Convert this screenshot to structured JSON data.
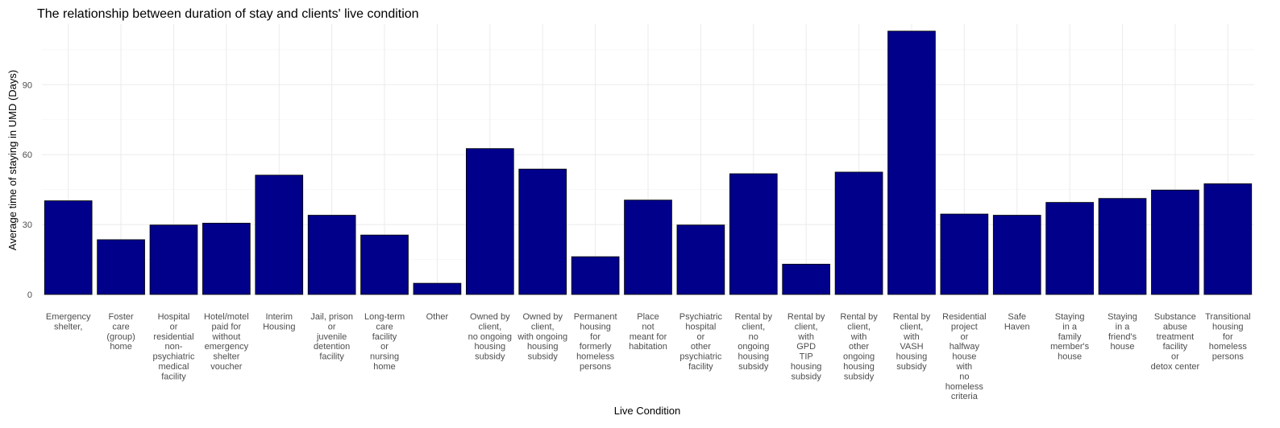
{
  "chart_data": {
    "type": "bar",
    "title": "The relationship between duration of stay and clients' live condition",
    "xlabel": "Live Condition",
    "ylabel": "Average time of staying in UMD (Days)",
    "ylim": [
      0,
      116
    ],
    "yticks": [
      0,
      30,
      60,
      90
    ],
    "grid": true,
    "bar_color": "#00008B",
    "categories": [
      "Emergency shelter,",
      "Foster care (group) home",
      "Hospital or residential non-psychiatric medical facility",
      "Hotel/motel paid for without emergency shelter voucher",
      "Interim Housing",
      "Jail, prison or juvenile detention facility",
      "Long-term care facility or nursing home",
      "Other",
      "Owned by client, no ongoing housing subsidy",
      "Owned by client, with ongoing housing subsidy",
      "Permanent housing for formerly homeless persons",
      "Place not meant for habitation",
      "Psychiatric hospital or other psychiatric facility",
      "Rental by client, no ongoing housing subsidy",
      "Rental by client, with GPD TIP housing subsidy",
      "Rental by client, with other ongoing housing subsidy",
      "Rental by client, with VASH housing subsidy",
      "Residential project or halfway house with no homeless criteria",
      "Safe Haven",
      "Staying in a family member's house",
      "Staying in a friend's house",
      "Substance abuse treatment facility or detox center",
      "Transitional housing for homeless persons"
    ],
    "tick_label_lines": [
      [
        "Emergency",
        "shelter,"
      ],
      [
        "Foster",
        "care",
        "(group)",
        "home"
      ],
      [
        "Hospital",
        "or",
        "residential",
        "non-",
        "psychiatric",
        "medical",
        "facility"
      ],
      [
        "Hotel/motel",
        "paid for",
        "without",
        "emergency",
        "shelter",
        "voucher"
      ],
      [
        "Interim",
        "Housing"
      ],
      [
        "Jail, prison",
        "or",
        "juvenile",
        "detention",
        "facility"
      ],
      [
        "Long-term",
        "care",
        "facility",
        "or",
        "nursing",
        "home"
      ],
      [
        "Other"
      ],
      [
        "Owned by",
        "client,",
        "no ongoing",
        "housing",
        "subsidy"
      ],
      [
        "Owned by",
        "client,",
        "with ongoing",
        "housing",
        "subsidy"
      ],
      [
        "Permanent",
        "housing",
        "for",
        "formerly",
        "homeless",
        "persons"
      ],
      [
        "Place",
        "not",
        "meant for",
        "habitation"
      ],
      [
        "Psychiatric",
        "hospital",
        "or",
        "other",
        "psychiatric",
        "facility"
      ],
      [
        "Rental by",
        "client,",
        "no",
        "ongoing",
        "housing",
        "subsidy"
      ],
      [
        "Rental by",
        "client,",
        "with",
        "GPD",
        "TIP",
        "housing",
        "subsidy"
      ],
      [
        "Rental by",
        "client,",
        "with",
        "other",
        "ongoing",
        "housing",
        "subsidy"
      ],
      [
        "Rental by",
        "client,",
        "with",
        "VASH",
        "housing",
        "subsidy"
      ],
      [
        "Residential",
        "project",
        "or",
        "halfway",
        "house",
        "with",
        "no",
        "homeless",
        "criteria"
      ],
      [
        "Safe",
        "Haven"
      ],
      [
        "Staying",
        "in a",
        "family",
        "member's",
        "house"
      ],
      [
        "Staying",
        "in a",
        "friend's",
        "house"
      ],
      [
        "Substance",
        "abuse",
        "treatment",
        "facility",
        "or",
        "detox center"
      ],
      [
        "Transitional",
        "housing",
        "for",
        "homeless",
        "persons"
      ]
    ],
    "values": [
      40.2,
      23.5,
      29.8,
      30.6,
      51.2,
      34.0,
      25.5,
      4.8,
      62.6,
      53.8,
      16.2,
      40.5,
      29.8,
      51.8,
      13.0,
      52.5,
      113.0,
      34.5,
      34.0,
      39.5,
      41.2,
      44.8,
      47.5
    ]
  }
}
